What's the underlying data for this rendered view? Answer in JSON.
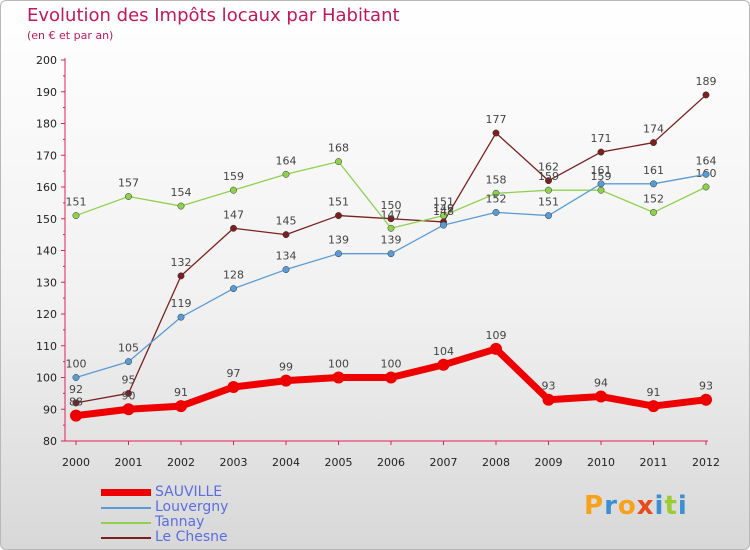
{
  "header": {
    "title": "Evolution des Impôts locaux par Habitant",
    "subtitle": "(en € et par an)"
  },
  "logo": {
    "text": "Proxiti",
    "letters": [
      "P",
      "r",
      "o",
      "x",
      "i",
      "t",
      "i"
    ],
    "colors": [
      "#f6a21b",
      "#3d8fd1",
      "#f6a21b",
      "#e84a1c",
      "#3d8fd1",
      "#9acd32",
      "#3d8fd1"
    ]
  },
  "chart_data": {
    "type": "line",
    "title": "Evolution des Impôts locaux par Habitant",
    "subtitle": "(en € et par an)",
    "x": [
      "2000",
      "2001",
      "2002",
      "2003",
      "2004",
      "2005",
      "2006",
      "2007",
      "2008",
      "2009",
      "2010",
      "2011",
      "2012"
    ],
    "ylim": [
      80,
      200
    ],
    "yticks": [
      80,
      90,
      100,
      110,
      120,
      130,
      140,
      150,
      160,
      170,
      180,
      190,
      200
    ],
    "grid": false,
    "legend_position": "bottom-left",
    "series": [
      {
        "name": "SAUVILLE",
        "color": "#ee0000",
        "values": [
          88,
          90,
          91,
          97,
          99,
          100,
          100,
          104,
          109,
          93,
          94,
          91,
          93
        ]
      },
      {
        "name": "Louvergny",
        "color": "#5b9bd5",
        "values": [
          100,
          105,
          119,
          128,
          134,
          139,
          139,
          148,
          152,
          151,
          161,
          161,
          164
        ]
      },
      {
        "name": "Tannay",
        "color": "#8fd14f",
        "values": [
          151,
          157,
          154,
          159,
          164,
          168,
          147,
          151,
          158,
          159,
          159,
          152,
          160
        ]
      },
      {
        "name": "Le Chesne",
        "color": "#7b2020",
        "values": [
          92,
          95,
          132,
          147,
          145,
          151,
          150,
          149,
          177,
          162,
          171,
          174,
          189
        ]
      }
    ]
  }
}
